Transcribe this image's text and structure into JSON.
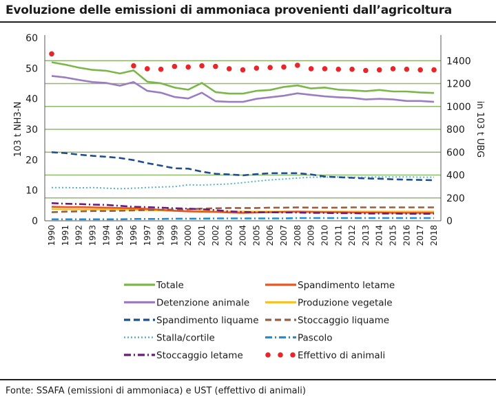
{
  "header": {
    "title": "Evoluzione delle emissioni di ammoniaca provenienti dall’agricoltura"
  },
  "footer": {
    "source": "Fonte: SSAFA (emissioni di ammoniaca) e UST (effettivo di animali)"
  },
  "chart_data": {
    "type": "line",
    "title": "Evoluzione delle emissioni di ammoniaca provenienti dall’agricoltura",
    "xlabel": "",
    "ylabel": "103 t NH3-N",
    "y2label": "in 103 t UBG",
    "ylim": [
      0,
      60
    ],
    "y2lim": [
      0,
      1600
    ],
    "yticks": [
      0,
      10,
      20,
      30,
      40,
      50,
      60
    ],
    "y2ticks": [
      0,
      200,
      400,
      600,
      800,
      1000,
      1200,
      1400
    ],
    "grid": true,
    "legend_position": "bottom",
    "categories": [
      "1990",
      "1991",
      "1992",
      "1993",
      "1994",
      "1995",
      "1996",
      "1997",
      "1998",
      "1999",
      "2000",
      "2001",
      "2002",
      "2003",
      "2004",
      "2005",
      "2006",
      "2007",
      "2008",
      "2009",
      "2010",
      "2011",
      "2012",
      "2013",
      "2014",
      "2015",
      "2016",
      "2017",
      "2018"
    ],
    "series": [
      {
        "name": "Totale",
        "axis": "left",
        "color": "#7ab648",
        "style": "solid",
        "values": [
          52.0,
          51.2,
          50.2,
          49.5,
          49.2,
          48.3,
          49.3,
          45.6,
          45.1,
          43.7,
          43.0,
          45.2,
          42.2,
          41.7,
          41.7,
          42.6,
          42.9,
          43.9,
          44.4,
          43.4,
          43.7,
          43.0,
          42.8,
          42.5,
          42.9,
          42.4,
          42.4,
          42.1,
          41.9
        ]
      },
      {
        "name": "Detenzione animale",
        "axis": "left",
        "color": "#9b7cc2",
        "style": "solid",
        "values": [
          47.5,
          47.0,
          46.2,
          45.5,
          45.2,
          44.3,
          45.5,
          42.6,
          42.0,
          40.6,
          40.1,
          42.0,
          39.2,
          39.0,
          39.0,
          40.0,
          40.5,
          41.0,
          41.8,
          41.3,
          40.8,
          40.5,
          40.3,
          39.8,
          40.0,
          39.8,
          39.3,
          39.3,
          39.0
        ]
      },
      {
        "name": "Spandimento liquame",
        "axis": "left",
        "color": "#1f4e8c",
        "style": "dash",
        "values": [
          22.5,
          22.2,
          21.7,
          21.3,
          21.0,
          20.6,
          19.9,
          18.9,
          18.1,
          17.2,
          17.1,
          16.1,
          15.4,
          15.2,
          14.9,
          15.3,
          15.6,
          15.6,
          15.6,
          15.2,
          14.5,
          14.3,
          14.1,
          13.9,
          13.8,
          13.6,
          13.5,
          13.4,
          13.3
        ]
      },
      {
        "name": "Stalla/cortile",
        "axis": "left",
        "color": "#4fb3c9",
        "style": "dot",
        "values": [
          10.9,
          10.9,
          10.8,
          10.9,
          10.7,
          10.5,
          10.7,
          10.9,
          11.1,
          11.2,
          11.8,
          11.7,
          11.9,
          12.1,
          12.5,
          13.0,
          13.4,
          13.7,
          14.0,
          14.3,
          14.3,
          14.4,
          14.3,
          14.3,
          14.4,
          14.4,
          14.4,
          14.3,
          14.3
        ]
      },
      {
        "name": "Stoccaggio letame",
        "axis": "left",
        "color": "#6b1a7a",
        "style": "dashdot",
        "values": [
          5.8,
          5.6,
          5.5,
          5.3,
          5.2,
          4.9,
          4.6,
          4.5,
          4.3,
          4.1,
          4.0,
          3.8,
          3.5,
          3.1,
          2.9,
          2.8,
          2.8,
          2.7,
          2.7,
          2.6,
          2.6,
          2.5,
          2.5,
          2.4,
          2.4,
          2.4,
          2.3,
          2.3,
          2.3
        ]
      },
      {
        "name": "Spandimento letame",
        "axis": "left",
        "color": "#e8571f",
        "style": "solid",
        "values": [
          4.6,
          4.5,
          4.5,
          4.4,
          4.3,
          4.2,
          4.1,
          3.9,
          3.6,
          3.3,
          3.1,
          3.0,
          2.9,
          2.7,
          2.6,
          2.7,
          2.8,
          2.9,
          3.0,
          2.9,
          2.8,
          2.8,
          2.7,
          2.7,
          2.7,
          2.6,
          2.6,
          2.6,
          2.6
        ]
      },
      {
        "name": "Produzione vegetale",
        "axis": "left",
        "color": "#f5c22b",
        "style": "solid",
        "values": [
          3.9,
          3.8,
          3.8,
          3.7,
          3.7,
          3.6,
          3.6,
          3.5,
          3.4,
          3.3,
          3.2,
          3.1,
          3.0,
          3.0,
          3.0,
          3.0,
          3.0,
          3.0,
          3.0,
          3.0,
          3.0,
          3.0,
          3.0,
          3.0,
          3.0,
          3.0,
          3.0,
          3.0,
          3.0
        ]
      },
      {
        "name": "Stoccaggio liquame",
        "axis": "left",
        "color": "#9a5d3f",
        "style": "dash",
        "values": [
          2.8,
          3.0,
          3.1,
          3.2,
          3.2,
          3.3,
          3.4,
          3.5,
          3.6,
          3.7,
          3.8,
          4.0,
          4.1,
          4.2,
          4.2,
          4.2,
          4.3,
          4.3,
          4.4,
          4.3,
          4.3,
          4.3,
          4.4,
          4.4,
          4.4,
          4.4,
          4.4,
          4.4,
          4.4
        ]
      },
      {
        "name": "Pascolo",
        "axis": "left",
        "color": "#1e8fd6",
        "style": "dashdot",
        "values": [
          0.5,
          0.5,
          0.5,
          0.5,
          0.5,
          0.5,
          0.6,
          0.6,
          0.6,
          0.7,
          0.7,
          0.7,
          0.8,
          0.8,
          0.8,
          0.8,
          0.8,
          0.8,
          0.9,
          0.9,
          0.9,
          0.9,
          0.9,
          0.9,
          0.9,
          0.9,
          0.9,
          0.9,
          0.9
        ]
      },
      {
        "name": "Effettivo di animali",
        "axis": "right",
        "color": "#e8262a",
        "style": "markers",
        "values": [
          1460,
          null,
          null,
          null,
          null,
          null,
          1355,
          1330,
          1325,
          1350,
          1345,
          1355,
          1350,
          1330,
          1320,
          1335,
          1340,
          1345,
          1360,
          1330,
          1330,
          1325,
          1325,
          1315,
          1320,
          1330,
          1325,
          1320,
          1320
        ]
      }
    ],
    "legend": {
      "left": [
        "Totale",
        "Detenzione animale",
        "Spandimento liquame",
        "Stalla/cortile",
        "Stoccaggio letame"
      ],
      "right": [
        "Spandimento letame",
        "Produzione vegetale",
        "Stoccaggio liquame",
        "Pascolo",
        "Effettivo di animali"
      ]
    }
  }
}
